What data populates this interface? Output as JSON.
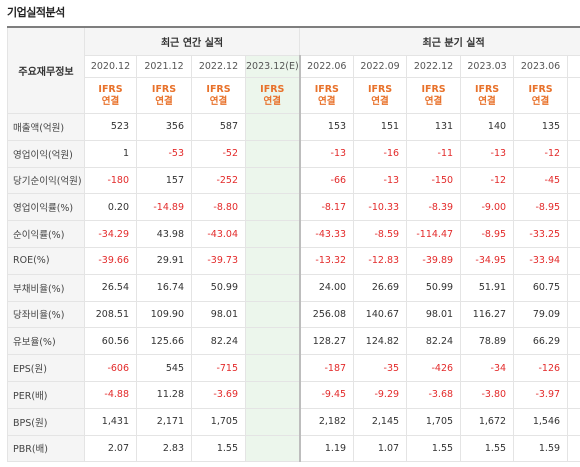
{
  "section_title": "기업실적분석",
  "row_header_label": "주요재무정보",
  "groups": {
    "annual": "최근 연간 실적",
    "quarterly": "최근 분기 실적"
  },
  "periods": {
    "annual": [
      "2020.12",
      "2021.12",
      "2022.12",
      "2023.12(E)"
    ],
    "quarterly": [
      "2022.06",
      "2022.09",
      "2022.12",
      "2023.03",
      "2023.06"
    ],
    "cut_label": "2"
  },
  "standard": {
    "line1": "IFRS",
    "line2": "연결"
  },
  "colors": {
    "negative": "#e32b2b",
    "ifrs": "#e8712a",
    "estimate_bg": "#ecf6ec"
  },
  "rows": [
    {
      "label": "매출액(억원)",
      "annual": [
        "523",
        "356",
        "587",
        ""
      ],
      "quarterly": [
        "153",
        "151",
        "131",
        "140",
        "135"
      ]
    },
    {
      "label": "영업이익(억원)",
      "annual": [
        "1",
        "-53",
        "-52",
        ""
      ],
      "quarterly": [
        "-13",
        "-16",
        "-11",
        "-13",
        "-12"
      ]
    },
    {
      "label": "당기순이익(억원)",
      "annual": [
        "-180",
        "157",
        "-252",
        ""
      ],
      "quarterly": [
        "-66",
        "-13",
        "-150",
        "-12",
        "-45"
      ]
    },
    {
      "label": "영업이익률(%)",
      "annual": [
        "0.20",
        "-14.89",
        "-8.80",
        ""
      ],
      "quarterly": [
        "-8.17",
        "-10.33",
        "-8.39",
        "-9.00",
        "-8.95"
      ]
    },
    {
      "label": "순이익률(%)",
      "annual": [
        "-34.29",
        "43.98",
        "-43.04",
        ""
      ],
      "quarterly": [
        "-43.33",
        "-8.59",
        "-114.47",
        "-8.95",
        "-33.25"
      ]
    },
    {
      "label": "ROE(%)",
      "annual": [
        "-39.66",
        "29.91",
        "-39.73",
        ""
      ],
      "quarterly": [
        "-13.32",
        "-12.83",
        "-39.89",
        "-34.95",
        "-33.94"
      ]
    },
    {
      "label": "부채비율(%)",
      "annual": [
        "26.54",
        "16.74",
        "50.99",
        ""
      ],
      "quarterly": [
        "24.00",
        "26.69",
        "50.99",
        "51.91",
        "60.75"
      ]
    },
    {
      "label": "당좌비율(%)",
      "annual": [
        "208.51",
        "109.90",
        "98.01",
        ""
      ],
      "quarterly": [
        "256.08",
        "140.67",
        "98.01",
        "116.27",
        "79.09"
      ]
    },
    {
      "label": "유보율(%)",
      "annual": [
        "60.56",
        "125.66",
        "82.24",
        ""
      ],
      "quarterly": [
        "128.27",
        "124.82",
        "82.24",
        "78.89",
        "66.29"
      ]
    },
    {
      "label": "EPS(원)",
      "annual": [
        "-606",
        "545",
        "-715",
        ""
      ],
      "quarterly": [
        "-187",
        "-35",
        "-426",
        "-34",
        "-126"
      ]
    },
    {
      "label": "PER(배)",
      "annual": [
        "-4.88",
        "11.28",
        "-3.69",
        ""
      ],
      "quarterly": [
        "-9.45",
        "-9.29",
        "-3.68",
        "-3.80",
        "-3.97"
      ]
    },
    {
      "label": "BPS(원)",
      "annual": [
        "1,431",
        "2,171",
        "1,705",
        ""
      ],
      "quarterly": [
        "2,182",
        "2,145",
        "1,705",
        "1,672",
        "1,546"
      ]
    },
    {
      "label": "PBR(배)",
      "annual": [
        "2.07",
        "2.83",
        "1.55",
        ""
      ],
      "quarterly": [
        "1.19",
        "1.07",
        "1.55",
        "1.55",
        "1.59"
      ]
    }
  ]
}
